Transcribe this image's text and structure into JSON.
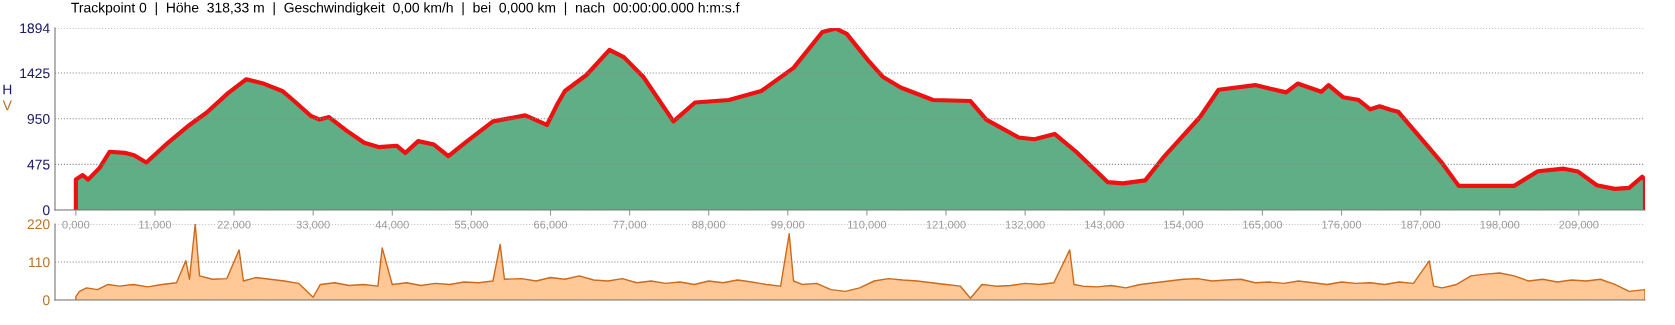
{
  "chart_data": [
    {
      "type": "area",
      "title": "Trackpoint 0  |  Höhe  318,33 m  |  Geschwindigkeit  0,00 km/h  |  bei  0,000 km  |  nach  00:00:00.000 h:m:s.f",
      "ylabel": "H",
      "x": [
        0,
        0.95,
        1.7,
        3.3,
        4.7,
        6.8,
        8.1,
        9.8,
        12.8,
        15.8,
        18.2,
        21.2,
        23.7,
        26.2,
        28.7,
        30.2,
        32.7,
        33.9,
        35.2,
        37.6,
        40.1,
        42.1,
        44.6,
        45.8,
        47.6,
        49.8,
        51.8,
        54.1,
        58.0,
        62.5,
        65.5,
        67.0,
        68.0,
        71.0,
        74.2,
        76.2,
        78.9,
        83.1,
        86.1,
        90.8,
        95.3,
        99.8,
        103.8,
        105.7,
        107.2,
        110.2,
        112.2,
        114.7,
        119.2,
        124.4,
        126.6,
        131.1,
        133.3,
        136.1,
        139.1,
        143.5,
        145.6,
        148.7,
        151.2,
        156.3,
        158.9,
        164.0,
        168.3,
        169.9,
        173.2,
        174.2,
        176.2,
        178.3,
        180.0,
        181.3,
        182.9,
        183.9,
        190.0,
        192.3,
        200.0,
        203.3,
        206.9,
        208.9,
        211.5,
        214.0,
        216.0,
        217.8,
        218.2
      ],
      "series": [
        {
          "color": "#5fae86",
          "values": [
            318,
            364,
            316,
            438,
            606,
            595,
            569,
            494,
            699,
            885,
            1015,
            1219,
            1361,
            1313,
            1239,
            1145,
            978,
            941,
            967,
            829,
            699,
            655,
            669,
            594,
            717,
            681,
            561,
            699,
            922,
            985,
            885,
            1108,
            1238,
            1405,
            1666,
            1591,
            1387,
            922,
            1119,
            1145,
            1238,
            1479,
            1852,
            1888,
            1833,
            1554,
            1387,
            1275,
            1145,
            1134,
            941,
            755,
            736,
            792,
            606,
            290,
            277,
            308,
            544,
            965,
            1251,
            1300,
            1224,
            1316,
            1231,
            1300,
            1174,
            1148,
            1048,
            1079,
            1041,
            1022,
            487,
            251,
            251,
            403,
            430,
            400,
            258,
            220,
            231,
            346,
            313
          ]
        }
      ],
      "xlim": [
        -2.9,
        218.2
      ],
      "xticks": [
        {
          "value": 0,
          "label": "0,000"
        },
        {
          "value": 11,
          "label": "11,000"
        },
        {
          "value": 22,
          "label": "22,000"
        },
        {
          "value": 33,
          "label": "33,000"
        },
        {
          "value": 44,
          "label": "44,000"
        },
        {
          "value": 55,
          "label": "55,000"
        },
        {
          "value": 66,
          "label": "66,000"
        },
        {
          "value": 77,
          "label": "77,000"
        },
        {
          "value": 88,
          "label": "88,000"
        },
        {
          "value": 99,
          "label": "99,000"
        },
        {
          "value": 110,
          "label": "110,000"
        },
        {
          "value": 121,
          "label": "121,000"
        },
        {
          "value": 132,
          "label": "132,000"
        },
        {
          "value": 143,
          "label": "143,000"
        },
        {
          "value": 154,
          "label": "154,000"
        },
        {
          "value": 165,
          "label": "165,000"
        },
        {
          "value": 176,
          "label": "176,000"
        },
        {
          "value": 187,
          "label": "187,000"
        },
        {
          "value": 198,
          "label": "198,000"
        },
        {
          "value": 209,
          "label": "209,000"
        }
      ],
      "ylim": [
        0,
        1894
      ],
      "yticks": [
        0,
        475,
        950,
        1425,
        1894
      ],
      "grid": "y"
    },
    {
      "type": "area",
      "ylabel": "V",
      "x": [
        0,
        0.5,
        1.5,
        3,
        4.5,
        6,
        8,
        10,
        12,
        14,
        15.3,
        15.8,
        16.6,
        17.2,
        19,
        21,
        22.7,
        23.3,
        25,
        27,
        29,
        31,
        33,
        34,
        36,
        38,
        40,
        42,
        42.6,
        44,
        46,
        48,
        50,
        52,
        54,
        56,
        58,
        59,
        59.6,
        62,
        64,
        66,
        68,
        70,
        72,
        74,
        76,
        78,
        80,
        82,
        84,
        86,
        88,
        90,
        92,
        94,
        96,
        98,
        99.2,
        99.8,
        101,
        103,
        105,
        107,
        109,
        111,
        113,
        115,
        117,
        119,
        121,
        123,
        124.4,
        126,
        128,
        130,
        132,
        134,
        136,
        138.2,
        138.8,
        140,
        142,
        144,
        146,
        148,
        150,
        152,
        154,
        156,
        158,
        160,
        162,
        164,
        166,
        168,
        170,
        172,
        174,
        176,
        178,
        180,
        182,
        184,
        186,
        188.2,
        188.8,
        190,
        192,
        194,
        196,
        198,
        200,
        202,
        204,
        206,
        208,
        210,
        212,
        214,
        216,
        218.2
      ],
      "series": [
        {
          "color": "#ffc896",
          "values": [
            10,
            25,
            35,
            30,
            45,
            40,
            45,
            38,
            45,
            50,
            114,
            60,
            220,
            70,
            60,
            62,
            145,
            55,
            65,
            60,
            55,
            48,
            8,
            45,
            50,
            42,
            45,
            40,
            151,
            45,
            50,
            42,
            48,
            45,
            52,
            50,
            55,
            161,
            60,
            62,
            55,
            65,
            60,
            70,
            58,
            55,
            62,
            50,
            55,
            48,
            52,
            45,
            55,
            50,
            58,
            52,
            45,
            40,
            192,
            55,
            45,
            48,
            30,
            25,
            35,
            55,
            62,
            58,
            55,
            50,
            45,
            40,
            5,
            45,
            40,
            42,
            48,
            45,
            50,
            145,
            45,
            40,
            38,
            42,
            35,
            45,
            50,
            55,
            60,
            62,
            55,
            58,
            60,
            50,
            52,
            48,
            55,
            50,
            45,
            52,
            48,
            50,
            45,
            52,
            48,
            113,
            40,
            35,
            45,
            70,
            75,
            78,
            70,
            55,
            60,
            52,
            58,
            55,
            60,
            45,
            25,
            30
          ]
        }
      ],
      "xlim": [
        -2.9,
        218.2
      ],
      "tick_labels": "y",
      "ylim": [
        0,
        220
      ],
      "yticks": [
        0,
        110,
        220
      ],
      "grid": "y"
    }
  ]
}
